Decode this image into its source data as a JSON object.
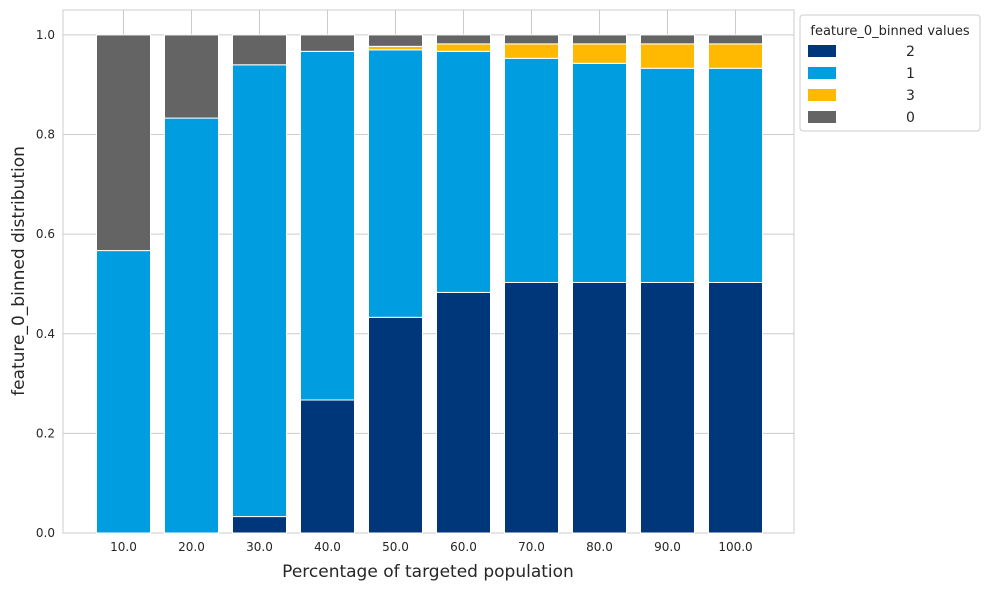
{
  "chart_data": {
    "type": "bar",
    "stacked": true,
    "title": "",
    "xlabel": "Percentage of targeted population",
    "ylabel": "feature_0_binned distribution",
    "categories": [
      "10.0",
      "20.0",
      "30.0",
      "40.0",
      "50.0",
      "60.0",
      "70.0",
      "80.0",
      "90.0",
      "100.0"
    ],
    "ylim": [
      0,
      1.05
    ],
    "yticks": [
      "0.0",
      "0.2",
      "0.4",
      "0.6",
      "0.8",
      "1.0"
    ],
    "ytick_values": [
      0,
      0.2,
      0.4,
      0.6,
      0.8,
      1.0
    ],
    "grid": true,
    "legend": {
      "title": "feature_0_binned values",
      "placement": "outside upper right"
    },
    "series": [
      {
        "name": "2",
        "color": "#00367a",
        "values": [
          0.0,
          0.0,
          0.033,
          0.267,
          0.433,
          0.483,
          0.503,
          0.503,
          0.503,
          0.503
        ]
      },
      {
        "name": "1",
        "color": "#009de0",
        "values": [
          0.567,
          0.833,
          0.907,
          0.7,
          0.537,
          0.484,
          0.45,
          0.44,
          0.43,
          0.43
        ]
      },
      {
        "name": "3",
        "color": "#ffb900",
        "values": [
          0.0,
          0.0,
          0.0,
          0.0,
          0.007,
          0.015,
          0.029,
          0.039,
          0.049,
          0.049
        ]
      },
      {
        "name": "0",
        "color": "#646464",
        "values": [
          0.433,
          0.167,
          0.06,
          0.033,
          0.023,
          0.018,
          0.018,
          0.018,
          0.018,
          0.018
        ]
      }
    ]
  }
}
